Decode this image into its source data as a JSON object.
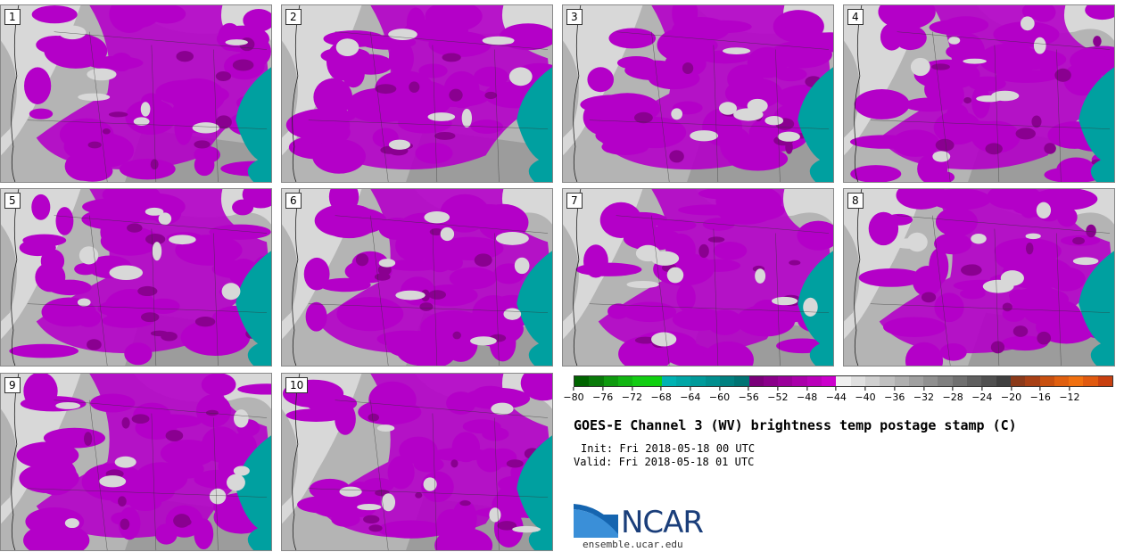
{
  "title": "GOES-E Channel 3 (WV) brightness temp postage stamp (C)",
  "init_line": "Init: Fri 2018-05-18 00 UTC",
  "valid_line": "Valid: Fri 2018-05-18 01 UTC",
  "logo": {
    "text": "NCAR",
    "url": "ensemble.ucar.edu"
  },
  "panels": [
    "1",
    "2",
    "3",
    "4",
    "5",
    "6",
    "7",
    "8",
    "9",
    "10"
  ],
  "colorbar": {
    "min": -80,
    "max": -10,
    "step": 2,
    "tick_labels": [
      "−80",
      "−76",
      "−72",
      "−68",
      "−64",
      "−60",
      "−56",
      "−52",
      "−48",
      "−44",
      "−40",
      "−36",
      "−32",
      "−28",
      "−24",
      "−20",
      "−16",
      "−12"
    ],
    "tick_values": [
      -80,
      -76,
      -72,
      -68,
      -64,
      -60,
      -56,
      -52,
      -48,
      -44,
      -40,
      -36,
      -32,
      -28,
      -24,
      -20,
      -16,
      -12
    ],
    "colors": [
      "#006400",
      "#0a7a0a",
      "#0f9a0f",
      "#12b512",
      "#14cc14",
      "#10d010",
      "#00b2b2",
      "#00a6a6",
      "#009a9a",
      "#008e8e",
      "#008080",
      "#007373",
      "#7a007a",
      "#8a008a",
      "#9a009a",
      "#aa00aa",
      "#ba00ba",
      "#cc00cc",
      "#f0f0f0",
      "#e0e0e0",
      "#d0d0d0",
      "#c0c0c0",
      "#b0b0b0",
      "#a0a0a0",
      "#909090",
      "#808080",
      "#707070",
      "#606060",
      "#505050",
      "#404040",
      "#8b3a1a",
      "#a84015",
      "#c85010",
      "#e06010",
      "#f07010",
      "#e05a10",
      "#c84010"
    ]
  },
  "map_colors": {
    "gray_light": "#d8d8d8",
    "gray_mid": "#b4b4b4",
    "gray_dark": "#8c8c8c",
    "magenta": "#b400c8",
    "magenta_dark": "#8a0090",
    "teal": "#00a0a0"
  }
}
